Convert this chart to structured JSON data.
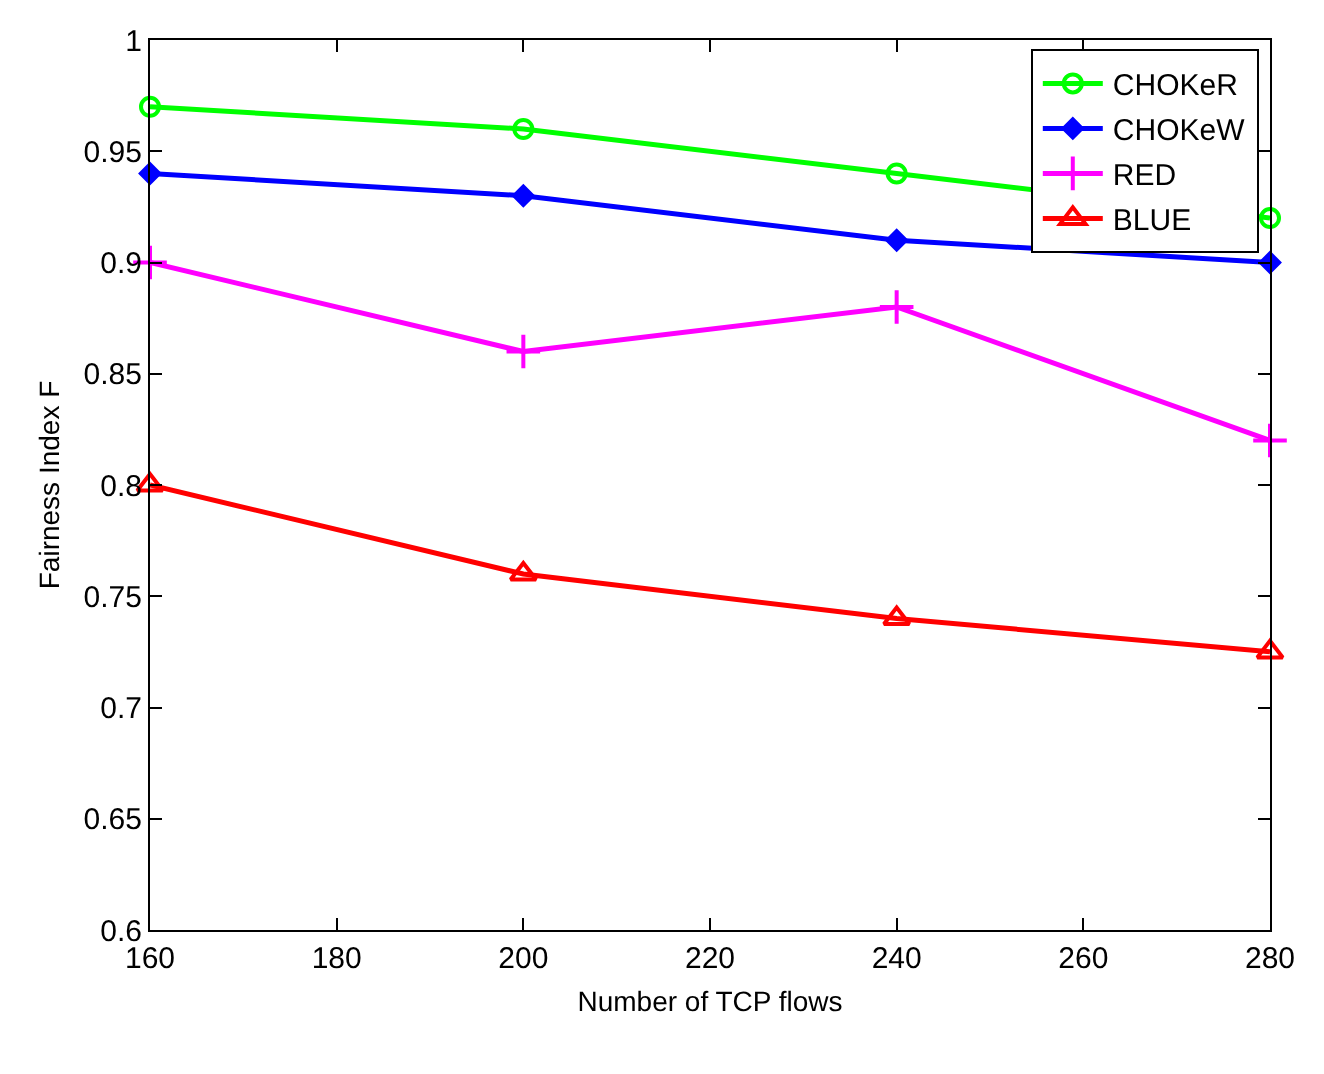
{
  "chart_data": {
    "type": "line",
    "xlabel": "Number of TCP flows",
    "ylabel": "Fairness Index F",
    "x": [
      160,
      200,
      240,
      280
    ],
    "series": [
      {
        "name": "CHOKeR",
        "color": "#00ff00",
        "marker": "circle",
        "values": [
          0.97,
          0.96,
          0.94,
          0.92
        ]
      },
      {
        "name": "CHOKeW",
        "color": "#0000ff",
        "marker": "diamond",
        "values": [
          0.94,
          0.93,
          0.91,
          0.9
        ]
      },
      {
        "name": "RED",
        "color": "#ff00ff",
        "marker": "cross",
        "values": [
          0.9,
          0.86,
          0.88,
          0.82
        ]
      },
      {
        "name": "BLUE",
        "color": "#ff0000",
        "marker": "triangle",
        "values": [
          0.8,
          0.76,
          0.74,
          0.725
        ]
      }
    ],
    "xlim": [
      160,
      280
    ],
    "xticks": [
      160,
      180,
      200,
      220,
      240,
      260,
      280
    ],
    "ylim": [
      0.6,
      1
    ],
    "yticks": [
      0.6,
      0.65,
      0.7,
      0.75,
      0.8,
      0.85,
      0.9,
      0.95,
      1
    ],
    "legend": "top right",
    "line_style": "solid"
  }
}
